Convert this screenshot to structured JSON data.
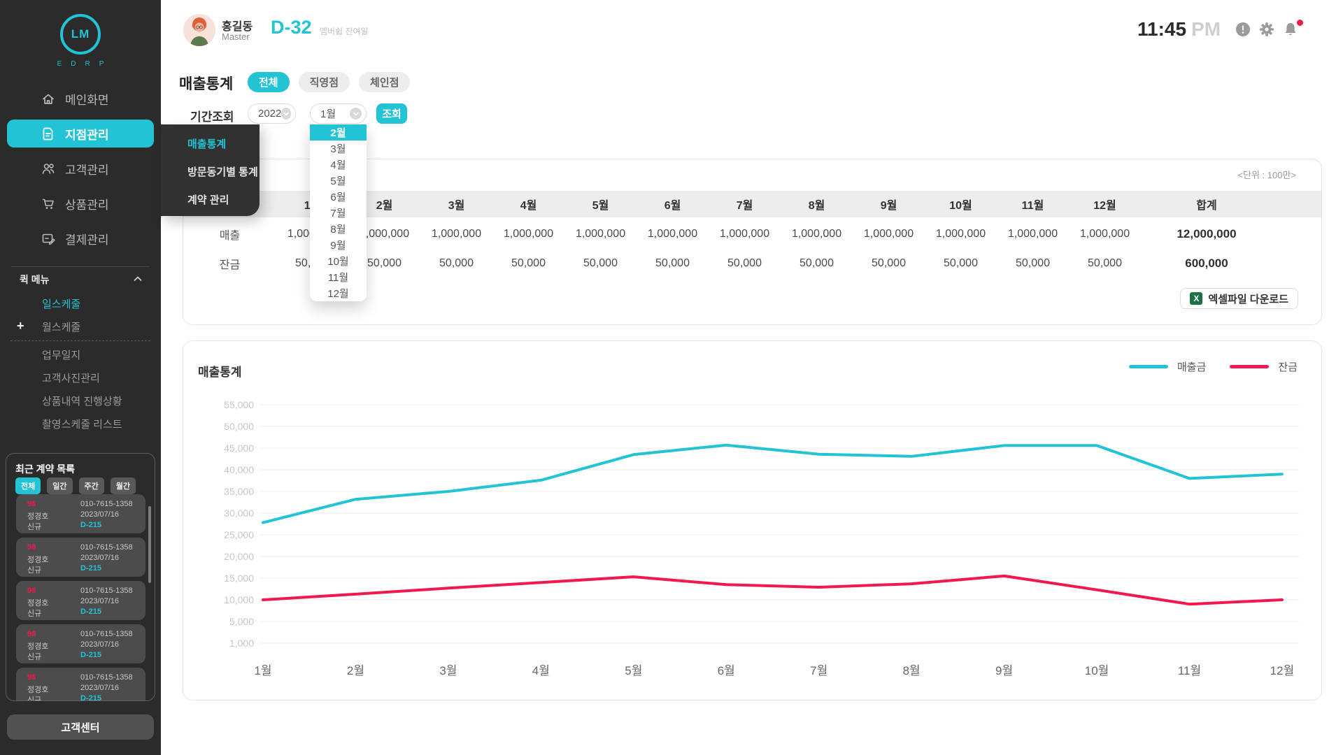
{
  "colors": {
    "accent": "#22c3d4",
    "danger": "#f1184e",
    "excel_green": "#1e7145",
    "sales_line": "#22c3d4",
    "balance_line": "#f1184e"
  },
  "sidebar": {
    "logo": {
      "mark": "LM",
      "brand": "EDRP"
    },
    "nav": [
      {
        "label": "메인화면",
        "icon": "home-icon",
        "active": false
      },
      {
        "label": "지점관리",
        "icon": "document-icon",
        "active": true
      },
      {
        "label": "고객관리",
        "icon": "users-icon",
        "active": false
      },
      {
        "label": "상품관리",
        "icon": "cart-icon",
        "active": false
      },
      {
        "label": "결제관리",
        "icon": "payment-icon",
        "active": false
      }
    ],
    "quick_menu": {
      "title": "퀵 메뉴",
      "items": [
        {
          "label": "일스케줄",
          "active": true,
          "plus": false
        },
        {
          "label": "월스케줄",
          "active": false,
          "plus": true
        },
        {
          "label": "업무일지",
          "active": false,
          "plus": false
        },
        {
          "label": "고객사진관리",
          "active": false,
          "plus": false
        },
        {
          "label": "상품내역 진행상황",
          "active": false,
          "plus": false
        },
        {
          "label": "촬영스케줄 리스트",
          "active": false,
          "plus": false
        }
      ],
      "separator_after_index": 1
    },
    "contracts": {
      "title": "최근 계약 목록",
      "filters": [
        {
          "label": "전체",
          "active": true
        },
        {
          "label": "일간",
          "active": false
        },
        {
          "label": "주간",
          "active": false
        },
        {
          "label": "월간",
          "active": false
        }
      ],
      "cards": [
        {
          "count": "98",
          "name": "정경호",
          "type": "신규",
          "phone": "010-7615-1358",
          "date": "2023/07/16",
          "dday": "D-215"
        },
        {
          "count": "98",
          "name": "정경호",
          "type": "신규",
          "phone": "010-7615-1358",
          "date": "2023/07/16",
          "dday": "D-215"
        },
        {
          "count": "98",
          "name": "정경호",
          "type": "신규",
          "phone": "010-7615-1358",
          "date": "2023/07/16",
          "dday": "D-215"
        },
        {
          "count": "98",
          "name": "정경호",
          "type": "신규",
          "phone": "010-7615-1358",
          "date": "2023/07/16",
          "dday": "D-215"
        },
        {
          "count": "98",
          "name": "정경호",
          "type": "신규",
          "phone": "010-7615-1358",
          "date": "2023/07/16",
          "dday": "D-215"
        }
      ]
    },
    "support_button": "고객센터"
  },
  "header": {
    "user": {
      "name": "홍길동",
      "role": "Master"
    },
    "dday": {
      "value": "D-32",
      "label": "멤버쉽 잔여일"
    },
    "clock": {
      "time": "11:45",
      "meridiem": "PM"
    },
    "icons": [
      "alert-icon",
      "gear-icon",
      "bell-icon"
    ],
    "bell_has_badge": true
  },
  "page": {
    "title": "매출통계",
    "tabs": [
      {
        "label": "전체",
        "active": true
      },
      {
        "label": "직영점",
        "active": false
      },
      {
        "label": "체인점",
        "active": false
      }
    ],
    "filter": {
      "label": "기간조회",
      "year": "2022",
      "month": "1월",
      "search_button": "조회",
      "month_dropdown": {
        "selected": "2월",
        "options": [
          "2월",
          "3월",
          "4월",
          "5월",
          "6월",
          "7월",
          "8월",
          "9월",
          "10월",
          "11월",
          "12월"
        ]
      }
    },
    "flyout": {
      "items": [
        {
          "label": "매출통계",
          "active": true
        },
        {
          "label": "방문동기별 통계",
          "active": false
        },
        {
          "label": "계약 관리",
          "active": false
        }
      ]
    }
  },
  "table": {
    "unit_note": "<단위 : 100만>",
    "months": [
      "1월",
      "2월",
      "3월",
      "4월",
      "5월",
      "6월",
      "7월",
      "8월",
      "9월",
      "10월",
      "11월",
      "12월"
    ],
    "total_header": "합계",
    "rows": [
      {
        "label": "매출",
        "values": [
          1000000,
          1000000,
          1000000,
          1000000,
          1000000,
          1000000,
          1000000,
          1000000,
          1000000,
          1000000,
          1000000,
          1000000
        ],
        "total": 12000000
      },
      {
        "label": "잔금",
        "values": [
          50000,
          50000,
          50000,
          50000,
          50000,
          50000,
          50000,
          50000,
          50000,
          50000,
          50000,
          50000
        ],
        "total": 600000
      }
    ],
    "excel_button": "엑셀파일 다운로드"
  },
  "chart_data": {
    "type": "line",
    "title": "매출통계",
    "categories": [
      "1월",
      "2월",
      "3월",
      "4월",
      "5월",
      "6월",
      "7월",
      "8월",
      "9월",
      "10월",
      "11월",
      "12월"
    ],
    "series": [
      {
        "name": "매출금",
        "color": "#22c3d4",
        "values": [
          27800,
          33200,
          35000,
          37600,
          43500,
          45700,
          43600,
          43100,
          45600,
          45600,
          38000,
          39000
        ]
      },
      {
        "name": "잔금",
        "color": "#f1184e",
        "values": [
          10000,
          11300,
          12700,
          14000,
          15300,
          13500,
          12900,
          13700,
          15500,
          12300,
          9000,
          10000
        ]
      }
    ],
    "y_ticks": [
      55000,
      50000,
      45000,
      40000,
      35000,
      30000,
      25000,
      20000,
      15000,
      10000,
      5000,
      1000
    ],
    "xlabel": "",
    "ylabel": "",
    "grid": "horizontal",
    "legend_position": "top-right"
  }
}
